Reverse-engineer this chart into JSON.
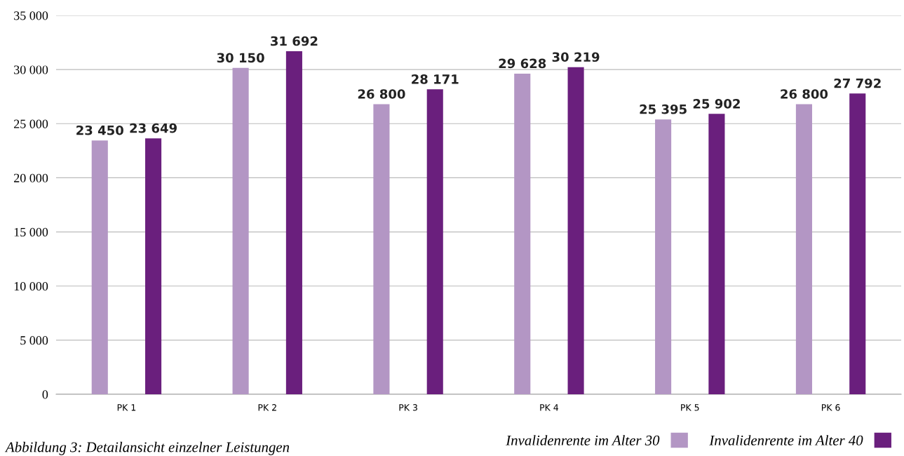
{
  "chart_data": {
    "type": "bar",
    "categories": [
      "PK 1",
      "PK 2",
      "PK 3",
      "PK 4",
      "PK 5",
      "PK 6"
    ],
    "series": [
      {
        "name": "Invalidenrente im Alter 30",
        "color": "#b396c4",
        "values": [
          23450,
          30150,
          26800,
          29628,
          25395,
          26800
        ],
        "value_labels": [
          "23 450",
          "30 150",
          "26 800",
          "29 628",
          "25 395",
          "26 800"
        ]
      },
      {
        "name": "Invalidenrente im Alter 40",
        "color": "#6a1f7d",
        "values": [
          23649,
          31692,
          28171,
          30219,
          25902,
          27792
        ],
        "value_labels": [
          "23 649",
          "31 692",
          "28 171",
          "30 219",
          "25 902",
          "27 792"
        ]
      }
    ],
    "ylim": [
      0,
      35000
    ],
    "yticks": [
      0,
      {
        "value": 5000,
        "label": "5 000"
      },
      {
        "value": 10000,
        "label": "10 000"
      },
      {
        "value": 15000,
        "label": "15 000"
      },
      {
        "value": 20000,
        "label": "20 000"
      },
      {
        "value": 25000,
        "label": "25 000"
      },
      {
        "value": 30000,
        "label": "30 000"
      },
      {
        "value": 35000,
        "label": "35 000"
      }
    ],
    "grid": "y",
    "legend": "bottom right",
    "annotations": [
      "Abbildung 3: Detailansicht einzelner Leistungen"
    ]
  }
}
